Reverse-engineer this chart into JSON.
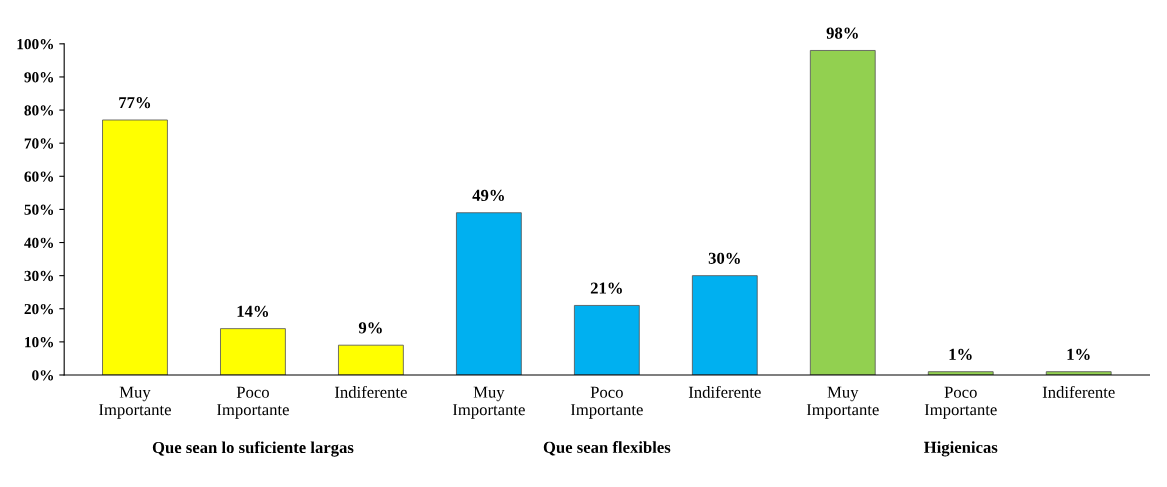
{
  "chart_data": {
    "type": "bar",
    "categories": [
      "Muy\nImportante",
      "Poco\nImportante",
      "Indiferente",
      "Muy\nImportante",
      "Poco\nImportante",
      "Indiferente",
      "Muy\nImportante",
      "Poco\nImportante",
      "Indiferente"
    ],
    "values": [
      77,
      14,
      9,
      49,
      21,
      30,
      98,
      1,
      1
    ],
    "colors": [
      "#ffff00",
      "#ffff00",
      "#ffff00",
      "#00b0f0",
      "#00b0f0",
      "#00b0f0",
      "#92d050",
      "#92d050",
      "#92d050"
    ],
    "value_labels": [
      "77%",
      "14%",
      "9%",
      "49%",
      "21%",
      "30%",
      "98%",
      "1%",
      "1%"
    ],
    "ylim": [
      0,
      100
    ],
    "yticks": [
      {
        "value": 0,
        "label": "0%"
      },
      {
        "value": 10,
        "label": "10%"
      },
      {
        "value": 20,
        "label": "20%"
      },
      {
        "value": 30,
        "label": "30%"
      },
      {
        "value": 40,
        "label": "40%"
      },
      {
        "value": 50,
        "label": "50%"
      },
      {
        "value": 60,
        "label": "60%"
      },
      {
        "value": 70,
        "label": "70%"
      },
      {
        "value": 80,
        "label": "80%"
      },
      {
        "value": 90,
        "label": "90%"
      },
      {
        "value": 100,
        "label": "100%"
      }
    ],
    "annotations": [
      "Que sean lo suficiente largas",
      "Que sean flexibles",
      "Higienicas"
    ],
    "grid": false
  }
}
